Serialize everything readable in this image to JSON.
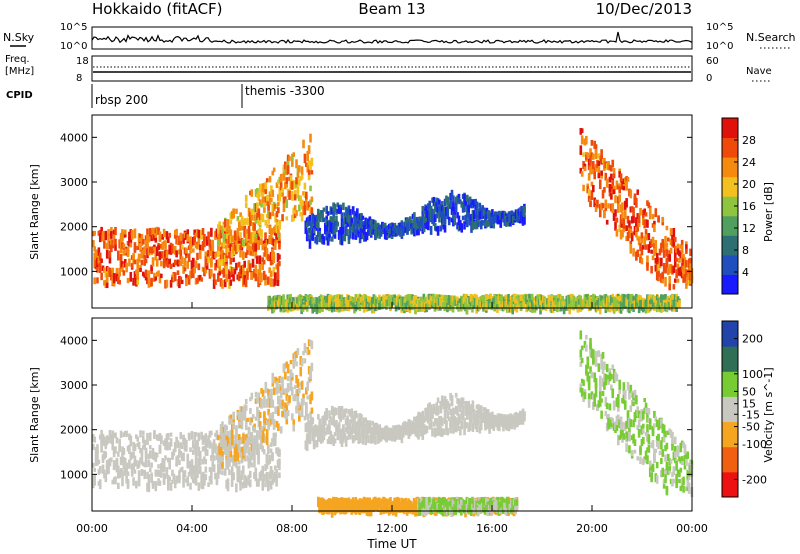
{
  "header": {
    "station": "Hokkaido (fitACF)",
    "beam": "Beam 13",
    "date": "10/Dec/2013"
  },
  "status_panels": {
    "nsky": {
      "left_label": "N.Sky",
      "left_ticks": [
        "10^5",
        "10^0"
      ],
      "right_ticks": [
        "10^5",
        "10^0"
      ],
      "right_label": "N.Search"
    },
    "freq": {
      "left_label_1": "Freq.",
      "left_label_2": "[MHz]",
      "left_ticks": [
        "18",
        "8"
      ],
      "right_ticks": [
        "60",
        "0"
      ],
      "right_label": "Nave"
    },
    "cpid": {
      "label": "CPID",
      "modes": [
        {
          "name": "rbsp 200",
          "start_hour": 0
        },
        {
          "name": "themis -3300",
          "start_hour": 6
        }
      ]
    }
  },
  "colors": {
    "power_scale": [
      "#1a1aff",
      "#1f4fbf",
      "#2e6f73",
      "#4f9f5f",
      "#8fc43f",
      "#f2c01f",
      "#f58a0f",
      "#f04a0a",
      "#e0100a"
    ],
    "velocity_scale": [
      "#ee1111",
      "#f06010",
      "#f5a520",
      "#c8c8c0",
      "#77cc33",
      "#2f6f55",
      "#2244aa"
    ]
  },
  "chart_data": [
    {
      "type": "heatmap",
      "title": "",
      "ylabel": "Slant Range [km]",
      "xlabel": "",
      "xlim": [
        "00:00",
        "24:00"
      ],
      "ylim": [
        180,
        4500
      ],
      "y_ticks": [
        1000,
        2000,
        3000,
        4000
      ],
      "colorbar": {
        "label": "Power [dB]",
        "ticks": [
          4,
          8,
          12,
          16,
          20,
          24,
          28
        ],
        "range": [
          0,
          32
        ]
      },
      "echo_regions": [
        {
          "feature": "main scatter band",
          "hour_start": 0.0,
          "hour_end": 7.5,
          "range_km": [
            800,
            2000
          ],
          "power_db": 28
        },
        {
          "feature": "rising slant",
          "hour_start": 5.0,
          "hour_end": 8.8,
          "range_km": [
            1200,
            3500
          ],
          "power_db": 24
        },
        {
          "feature": "weak extended band",
          "hour_start": 8.5,
          "hour_end": 17.3,
          "range_km": [
            1800,
            2900
          ],
          "power_db": 7
        },
        {
          "feature": "ground scatter",
          "hour_start": 7.0,
          "hour_end": 23.5,
          "range_km": [
            250,
            500
          ],
          "power_db": 18
        },
        {
          "feature": "descending band",
          "hour_start": 19.5,
          "hour_end": 24.0,
          "range_km": [
            700,
            4300
          ],
          "power_db": 28
        }
      ]
    },
    {
      "type": "heatmap",
      "title": "",
      "ylabel": "Slant Range [km]",
      "xlabel": "Time UT",
      "x_ticks": [
        "00:00",
        "04:00",
        "08:00",
        "12:00",
        "16:00",
        "20:00",
        "00:00"
      ],
      "ylim": [
        180,
        4500
      ],
      "y_ticks": [
        1000,
        2000,
        3000,
        4000
      ],
      "colorbar": {
        "label": "Velocity [m s^-1]",
        "ticks": [
          -200,
          -100,
          -50,
          -15,
          15,
          50,
          100,
          200
        ],
        "range": [
          -250,
          250
        ]
      },
      "echo_regions": [
        {
          "feature": "main scatter band",
          "hour_start": 0.0,
          "hour_end": 7.5,
          "range_km": [
            800,
            2000
          ],
          "velocity": 0
        },
        {
          "feature": "rising slant",
          "hour_start": 5.0,
          "hour_end": 8.8,
          "range_km": [
            1200,
            3500
          ],
          "velocity": -30
        },
        {
          "feature": "weak extended band",
          "hour_start": 8.5,
          "hour_end": 17.3,
          "range_km": [
            1800,
            2900
          ],
          "velocity": 0
        },
        {
          "feature": "ground scatter",
          "hour_start": 9.0,
          "hour_end": 17.0,
          "range_km": [
            250,
            500
          ],
          "velocity": -60
        },
        {
          "feature": "ground scatter",
          "hour_start": 13.0,
          "hour_end": 17.0,
          "range_km": [
            250,
            500
          ],
          "velocity": 40
        },
        {
          "feature": "descending band",
          "hour_start": 19.5,
          "hour_end": 24.0,
          "range_km": [
            700,
            4300
          ],
          "velocity": 40
        }
      ]
    }
  ]
}
